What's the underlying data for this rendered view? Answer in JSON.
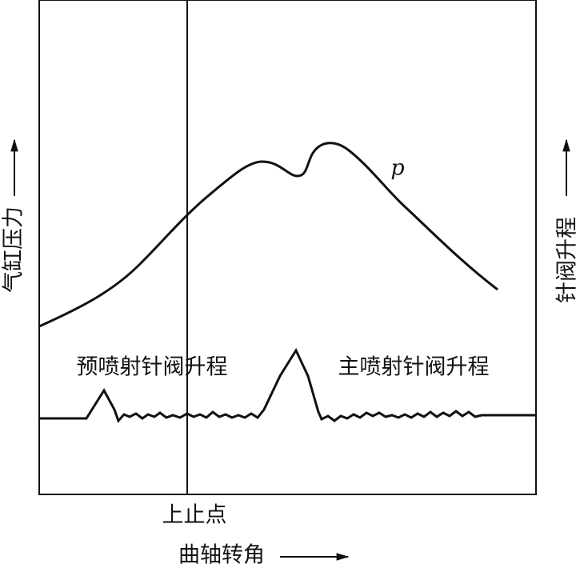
{
  "axes": {
    "y_left_label": "气缸压力",
    "y_right_label": "针阀升程",
    "x_label": "曲轴转角",
    "tdc_label": "上止点"
  },
  "curves": {
    "pressure_label": "p",
    "pilot_label": "预喷射针阀升程",
    "main_label": "主喷射针阀升程"
  }
}
